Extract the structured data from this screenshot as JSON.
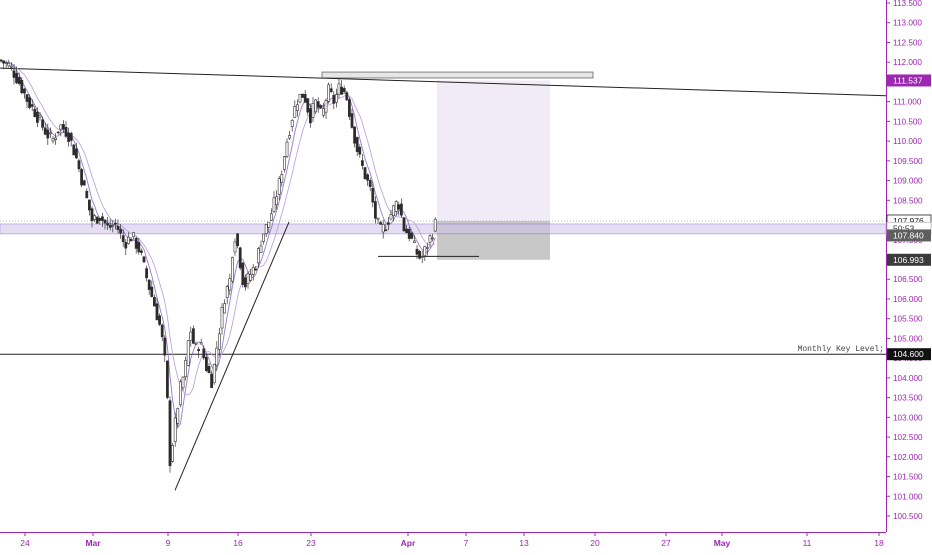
{
  "chart_data": {
    "type": "candlestick",
    "ylim": [
      100.3,
      113.75
    ],
    "y_ticks": [
      "100.500",
      "101.000",
      "101.500",
      "102.000",
      "102.500",
      "103.000",
      "103.500",
      "104.000",
      "104.500",
      "105.000",
      "105.500",
      "106.000",
      "106.500",
      "107.000",
      "107.500",
      "108.000",
      "108.500",
      "109.000",
      "109.500",
      "110.000",
      "110.500",
      "111.000",
      "111.500",
      "112.000",
      "112.500",
      "113.000",
      "113.500"
    ],
    "x_ticks": [
      {
        "label": "24",
        "bold": false
      },
      {
        "label": "Mar",
        "bold": true
      },
      {
        "label": "9",
        "bold": false
      },
      {
        "label": "16",
        "bold": false
      },
      {
        "label": "23",
        "bold": false
      },
      {
        "label": "Apr",
        "bold": true
      },
      {
        "label": "7",
        "bold": false
      },
      {
        "label": "13",
        "bold": false
      },
      {
        "label": "20",
        "bold": false
      },
      {
        "label": "27",
        "bold": false
      },
      {
        "label": "May",
        "bold": true
      },
      {
        "label": "11",
        "bold": false
      },
      {
        "label": "18",
        "bold": false
      }
    ],
    "price_path": [
      {
        "t": 0,
        "p": 112.05
      },
      {
        "t": 10,
        "p": 111.9
      },
      {
        "t": 18,
        "p": 111.55
      },
      {
        "t": 28,
        "p": 111.0
      },
      {
        "t": 36,
        "p": 110.7
      },
      {
        "t": 44,
        "p": 110.3
      },
      {
        "t": 52,
        "p": 110.0
      },
      {
        "t": 60,
        "p": 110.4
      },
      {
        "t": 68,
        "p": 110.2
      },
      {
        "t": 76,
        "p": 109.6
      },
      {
        "t": 84,
        "p": 108.8
      },
      {
        "t": 92,
        "p": 108.0
      },
      {
        "t": 100,
        "p": 108.1
      },
      {
        "t": 108,
        "p": 107.8
      },
      {
        "t": 116,
        "p": 107.9
      },
      {
        "t": 124,
        "p": 107.4
      },
      {
        "t": 132,
        "p": 107.6
      },
      {
        "t": 140,
        "p": 107.2
      },
      {
        "t": 148,
        "p": 106.4
      },
      {
        "t": 155,
        "p": 105.8
      },
      {
        "t": 161,
        "p": 105.2
      },
      {
        "t": 166,
        "p": 104.2
      },
      {
        "t": 170,
        "p": 101.9
      },
      {
        "t": 175,
        "p": 102.8
      },
      {
        "t": 180,
        "p": 103.7
      },
      {
        "t": 185,
        "p": 104.2
      },
      {
        "t": 190,
        "p": 105.3
      },
      {
        "t": 195,
        "p": 104.7
      },
      {
        "t": 200,
        "p": 104.9
      },
      {
        "t": 206,
        "p": 104.3
      },
      {
        "t": 212,
        "p": 103.9
      },
      {
        "t": 218,
        "p": 105.0
      },
      {
        "t": 224,
        "p": 106.0
      },
      {
        "t": 230,
        "p": 106.5
      },
      {
        "t": 234,
        "p": 107.7
      },
      {
        "t": 238,
        "p": 107.3
      },
      {
        "t": 244,
        "p": 106.3
      },
      {
        "t": 250,
        "p": 106.6
      },
      {
        "t": 256,
        "p": 106.9
      },
      {
        "t": 262,
        "p": 107.6
      },
      {
        "t": 268,
        "p": 107.9
      },
      {
        "t": 274,
        "p": 108.4
      },
      {
        "t": 280,
        "p": 109.0
      },
      {
        "t": 286,
        "p": 109.9
      },
      {
        "t": 292,
        "p": 110.6
      },
      {
        "t": 298,
        "p": 111.1
      },
      {
        "t": 304,
        "p": 111.2
      },
      {
        "t": 310,
        "p": 110.6
      },
      {
        "t": 316,
        "p": 111.0
      },
      {
        "t": 322,
        "p": 110.6
      },
      {
        "t": 328,
        "p": 111.3
      },
      {
        "t": 334,
        "p": 111.0
      },
      {
        "t": 340,
        "p": 111.4
      },
      {
        "t": 346,
        "p": 111.2
      },
      {
        "t": 352,
        "p": 110.4
      },
      {
        "t": 358,
        "p": 109.7
      },
      {
        "t": 364,
        "p": 109.2
      },
      {
        "t": 370,
        "p": 108.8
      },
      {
        "t": 376,
        "p": 108.0
      },
      {
        "t": 381,
        "p": 107.7
      },
      {
        "t": 386,
        "p": 107.9
      },
      {
        "t": 392,
        "p": 108.2
      },
      {
        "t": 398,
        "p": 108.5
      },
      {
        "t": 404,
        "p": 107.8
      },
      {
        "t": 410,
        "p": 107.6
      },
      {
        "t": 416,
        "p": 107.2
      },
      {
        "t": 421,
        "p": 107.0
      },
      {
        "t": 426,
        "p": 107.3
      },
      {
        "t": 431,
        "p": 107.6
      },
      {
        "t": 436,
        "p": 107.95
      }
    ],
    "annotations": {
      "monthly_key_level": {
        "label": "Monthly Key Level;",
        "price": 104.6
      },
      "trendline_upper": {
        "from": {
          "t": 0,
          "p": 111.85
        },
        "to": {
          "t": 886,
          "p": 111.15
        }
      },
      "trendline_lower": {
        "from": {
          "t": 175,
          "p": 101.15
        },
        "to": {
          "t": 289,
          "p": 107.95
        }
      },
      "support_line": {
        "from": {
          "t": 378,
          "p": 107.08
        },
        "to": {
          "t": 479,
          "p": 107.08
        }
      },
      "zone_band": {
        "top": 107.9,
        "bottom": 107.65
      },
      "dotted_price_line": {
        "price": 107.976
      },
      "resistance_box": {
        "x0": 322,
        "x1": 593,
        "top": 111.75,
        "bottom": 111.6
      },
      "target_box": {
        "x0": 437,
        "x1": 550,
        "top": 111.537,
        "bottom": 107.976
      },
      "stop_box": {
        "x0": 437,
        "x1": 550,
        "top": 107.976,
        "bottom": 106.993
      }
    },
    "price_labels": [
      {
        "value": "111.537",
        "price": 111.537,
        "style": "purple"
      },
      {
        "value": "107.976",
        "price": 107.976,
        "style": "outline-dark"
      },
      {
        "value": "50:53",
        "price": 107.79,
        "style": "outline-light"
      },
      {
        "value": "107.840",
        "price": 107.61,
        "style": "gray"
      },
      {
        "value": "106.993",
        "price": 106.993,
        "style": "dark"
      },
      {
        "value": "104.600",
        "price": 104.6,
        "style": "black"
      }
    ],
    "colors": {
      "accent": "#9c27b0",
      "axis_text": "#9c27b0",
      "candle_up": "#ffffff",
      "candle_down": "#2a2a2a",
      "ma": "#b39ddb",
      "target_fill": "#ede7f6",
      "stop_fill": "#c2c2c2",
      "zone_fill": "#d1c4e9"
    }
  }
}
